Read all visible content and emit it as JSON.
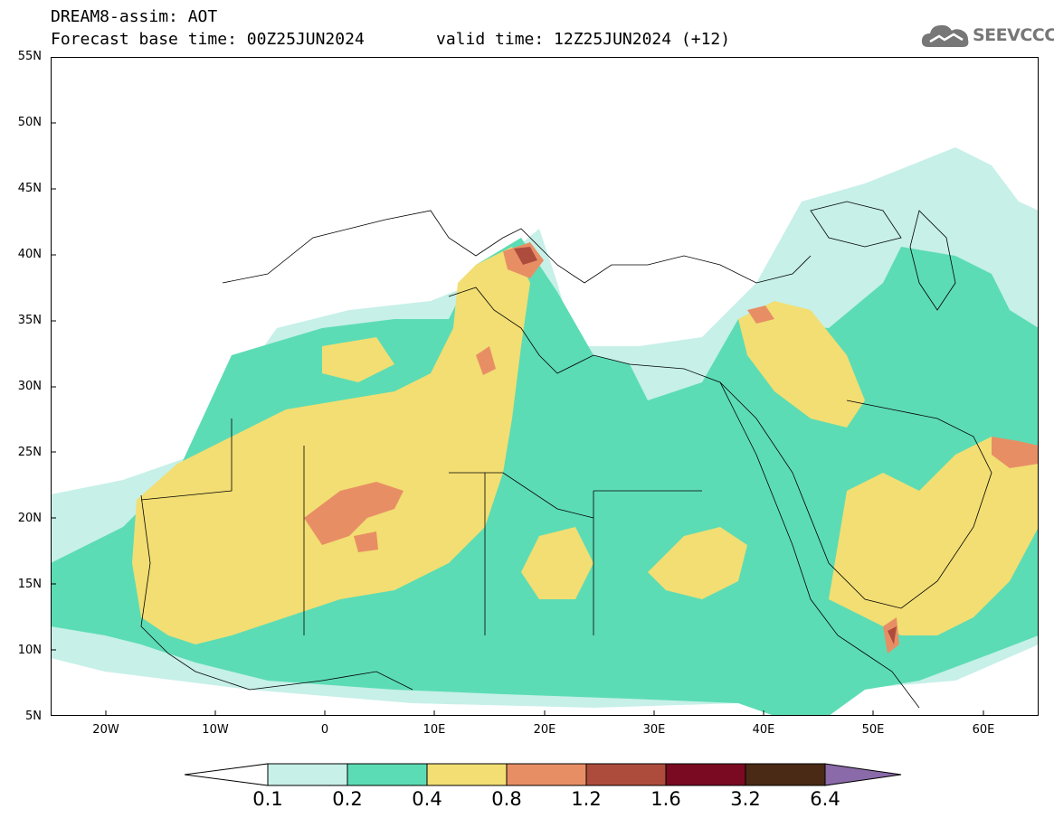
{
  "header": {
    "line1": "DREAM8-assim: AOT",
    "base_time": "Forecast base time: 00Z25JUN2024",
    "valid_time": "valid time: 12Z25JUN2024 (+12)"
  },
  "logo": {
    "text": "SEEVCCC",
    "icon": "cloud-icon"
  },
  "axes": {
    "lat_labels": [
      "55N",
      "50N",
      "45N",
      "40N",
      "35N",
      "30N",
      "25N",
      "20N",
      "15N",
      "10N",
      "5N"
    ],
    "lon_labels": [
      "20W",
      "10W",
      "0",
      "10E",
      "20E",
      "30E",
      "40E",
      "50E",
      "60E"
    ]
  },
  "colorbar": {
    "labels": [
      "0.1",
      "0.2",
      "0.4",
      "0.8",
      "1.2",
      "1.6",
      "3.2",
      "6.4"
    ],
    "colors": [
      "#c6f0e8",
      "#5cdcb4",
      "#f2de73",
      "#e88e65",
      "#ad4c3c",
      "#7a0a22",
      "#4a2a14",
      "#8a6aa8"
    ]
  },
  "chart_data": {
    "type": "heatmap",
    "variable": "AOT",
    "lon_range": [
      -25,
      65
    ],
    "lat_range": [
      5,
      55
    ],
    "levels": [
      0.1,
      0.2,
      0.4,
      0.8,
      1.2,
      1.6,
      3.2,
      6.4
    ]
  }
}
